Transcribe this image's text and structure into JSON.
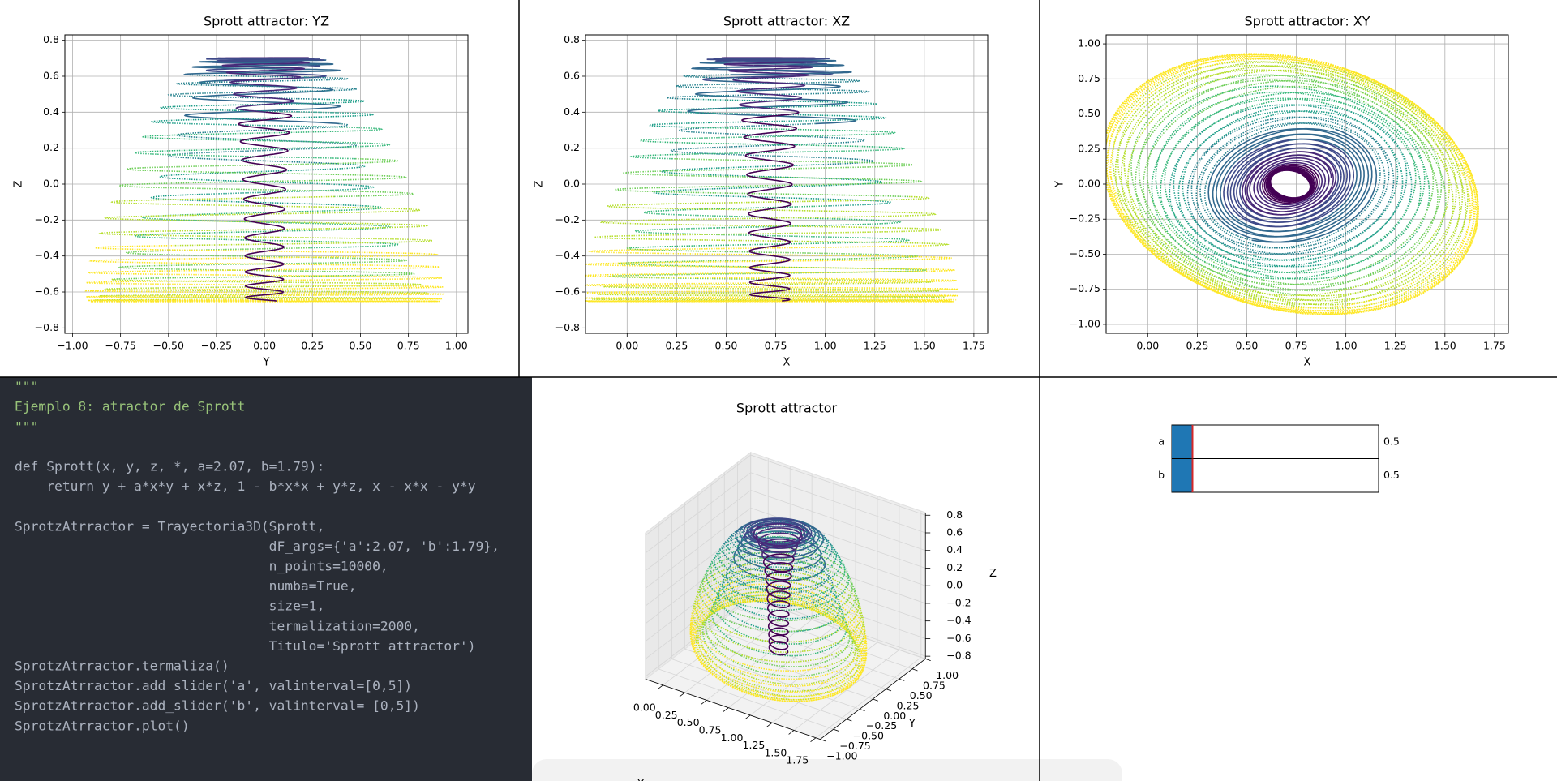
{
  "plots": [
    {
      "title": "Sprott attractor: YZ",
      "xlabel": "Y",
      "ylabel": "Z",
      "xlim": [
        -1.04,
        1.06
      ],
      "ylim": [
        -0.83,
        0.83
      ],
      "xticks": [
        {
          "value": -1,
          "label": "−1.00"
        },
        {
          "value": -0.75,
          "label": "−0.75"
        },
        {
          "value": -0.5,
          "label": "−0.50"
        },
        {
          "value": -0.25,
          "label": "−0.25"
        },
        {
          "value": 0,
          "label": "0.00"
        },
        0.25,
        {
          "value": 0.5,
          "label": "0.50"
        },
        0.75,
        {
          "value": 1,
          "label": "1.00"
        }
      ],
      "yticks": [
        {
          "value": -0.8,
          "label": "−0.8"
        },
        {
          "value": -0.6,
          "label": "−0.6"
        },
        {
          "value": -0.4,
          "label": "−0.4"
        },
        {
          "value": -0.2,
          "label": "−0.2"
        },
        {
          "value": 0,
          "label": "0.0"
        },
        0.2,
        0.4,
        0.6,
        0.8
      ],
      "grid": true
    },
    {
      "title": "Sprott attractor: XZ",
      "xlabel": "X",
      "ylabel": "Z",
      "xlim": [
        -0.21,
        1.82
      ],
      "ylim": [
        -0.83,
        0.83
      ],
      "xticks": [
        {
          "value": 0,
          "label": "0.00"
        },
        0.25,
        {
          "value": 0.5,
          "label": "0.50"
        },
        0.75,
        {
          "value": 1,
          "label": "1.00"
        },
        1.25,
        {
          "value": 1.5,
          "label": "1.50"
        },
        1.75
      ],
      "yticks": [
        {
          "value": -0.8,
          "label": "−0.8"
        },
        {
          "value": -0.6,
          "label": "−0.6"
        },
        {
          "value": -0.4,
          "label": "−0.4"
        },
        {
          "value": -0.2,
          "label": "−0.2"
        },
        {
          "value": 0,
          "label": "0.0"
        },
        0.2,
        0.4,
        0.6,
        0.8
      ],
      "grid": true
    },
    {
      "title": "Sprott attractor: XY",
      "xlabel": "X",
      "ylabel": "Y",
      "xlim": [
        -0.21,
        1.82
      ],
      "ylim": [
        -1.064,
        1.064
      ],
      "xticks": [
        {
          "value": 0,
          "label": "0.00"
        },
        0.25,
        {
          "value": 0.5,
          "label": "0.50"
        },
        0.75,
        {
          "value": 1,
          "label": "1.00"
        },
        1.25,
        {
          "value": 1.5,
          "label": "1.50"
        },
        1.75
      ],
      "yticks": [
        {
          "value": -1,
          "label": "−1.00"
        },
        {
          "value": -0.75,
          "label": "−0.75"
        },
        {
          "value": -0.5,
          "label": "−0.50"
        },
        {
          "value": -0.25,
          "label": "−0.25"
        },
        {
          "value": 0,
          "label": "0.00"
        },
        0.25,
        {
          "value": 0.5,
          "label": "0.50"
        },
        0.75,
        {
          "value": 1,
          "label": "1.00"
        }
      ],
      "grid": true
    }
  ],
  "plot3d": {
    "title": "Sprott attractor",
    "xlabel": "X",
    "ylabel": "Y",
    "zlabel": "Z",
    "xlim": [
      -0.2,
      1.8
    ],
    "ylim": [
      -1,
      1
    ],
    "zlim": [
      -0.83,
      0.83
    ],
    "xticks": [
      {
        "value": 0,
        "label": "0.00"
      },
      0.25,
      {
        "value": 0.5,
        "label": "0.50"
      },
      0.75,
      {
        "value": 1,
        "label": "1.00"
      },
      1.25,
      {
        "value": 1.5,
        "label": "1.50"
      },
      1.75
    ],
    "yticks": [
      {
        "value": 1,
        "label": "1.00"
      },
      0.75,
      {
        "value": 0.5,
        "label": "0.50"
      },
      0.25,
      {
        "value": 0,
        "label": "0.00"
      },
      {
        "value": -0.25,
        "label": "−0.25"
      },
      {
        "value": -0.5,
        "label": "−0.50"
      },
      {
        "value": -0.75,
        "label": "−0.75"
      },
      {
        "value": -1,
        "label": "−1.00"
      }
    ],
    "zticks": [
      0.8,
      0.6,
      0.4,
      0.2,
      {
        "value": 0,
        "label": "0.0"
      },
      {
        "value": -0.2,
        "label": "−0.2"
      },
      {
        "value": -0.4,
        "label": "−0.4"
      },
      {
        "value": -0.6,
        "label": "−0.6"
      },
      {
        "value": -0.8,
        "label": "−0.8"
      }
    ]
  },
  "code": [
    [
      "\"\"\"",
      "Ejemplo 8: atractor de Sprott",
      "\"\"\""
    ],
    [
      "def Sprott(x, y, z, *, a=2.07, b=1.79):",
      "    return y + a*x*y + x*z, 1 - b*x*x + y*z, x - x*x - y*y"
    ],
    [
      "SprotzAtrractor = Trayectoria3D(Sprott,",
      "                                dF_args={'a':2.07, 'b':1.79},",
      "                                n_points=10000,",
      "                                numba=True,",
      "                                size=1,",
      "                                termalization=2000,",
      "                                Titulo='Sprott attractor')",
      "SprotzAtrractor.termaliza()",
      "SprotzAtrractor.add_slider('a', valinterval=[0,5])",
      "SprotzAtrractor.add_slider('b', valinterval= [0,5])",
      "SprotzAtrractor.plot()"
    ]
  ],
  "sliders": [
    {
      "label": "a",
      "value": 0.5,
      "range": [
        0,
        5
      ]
    },
    {
      "label": "b",
      "value": 0.5,
      "range": [
        0,
        5
      ]
    }
  ]
}
